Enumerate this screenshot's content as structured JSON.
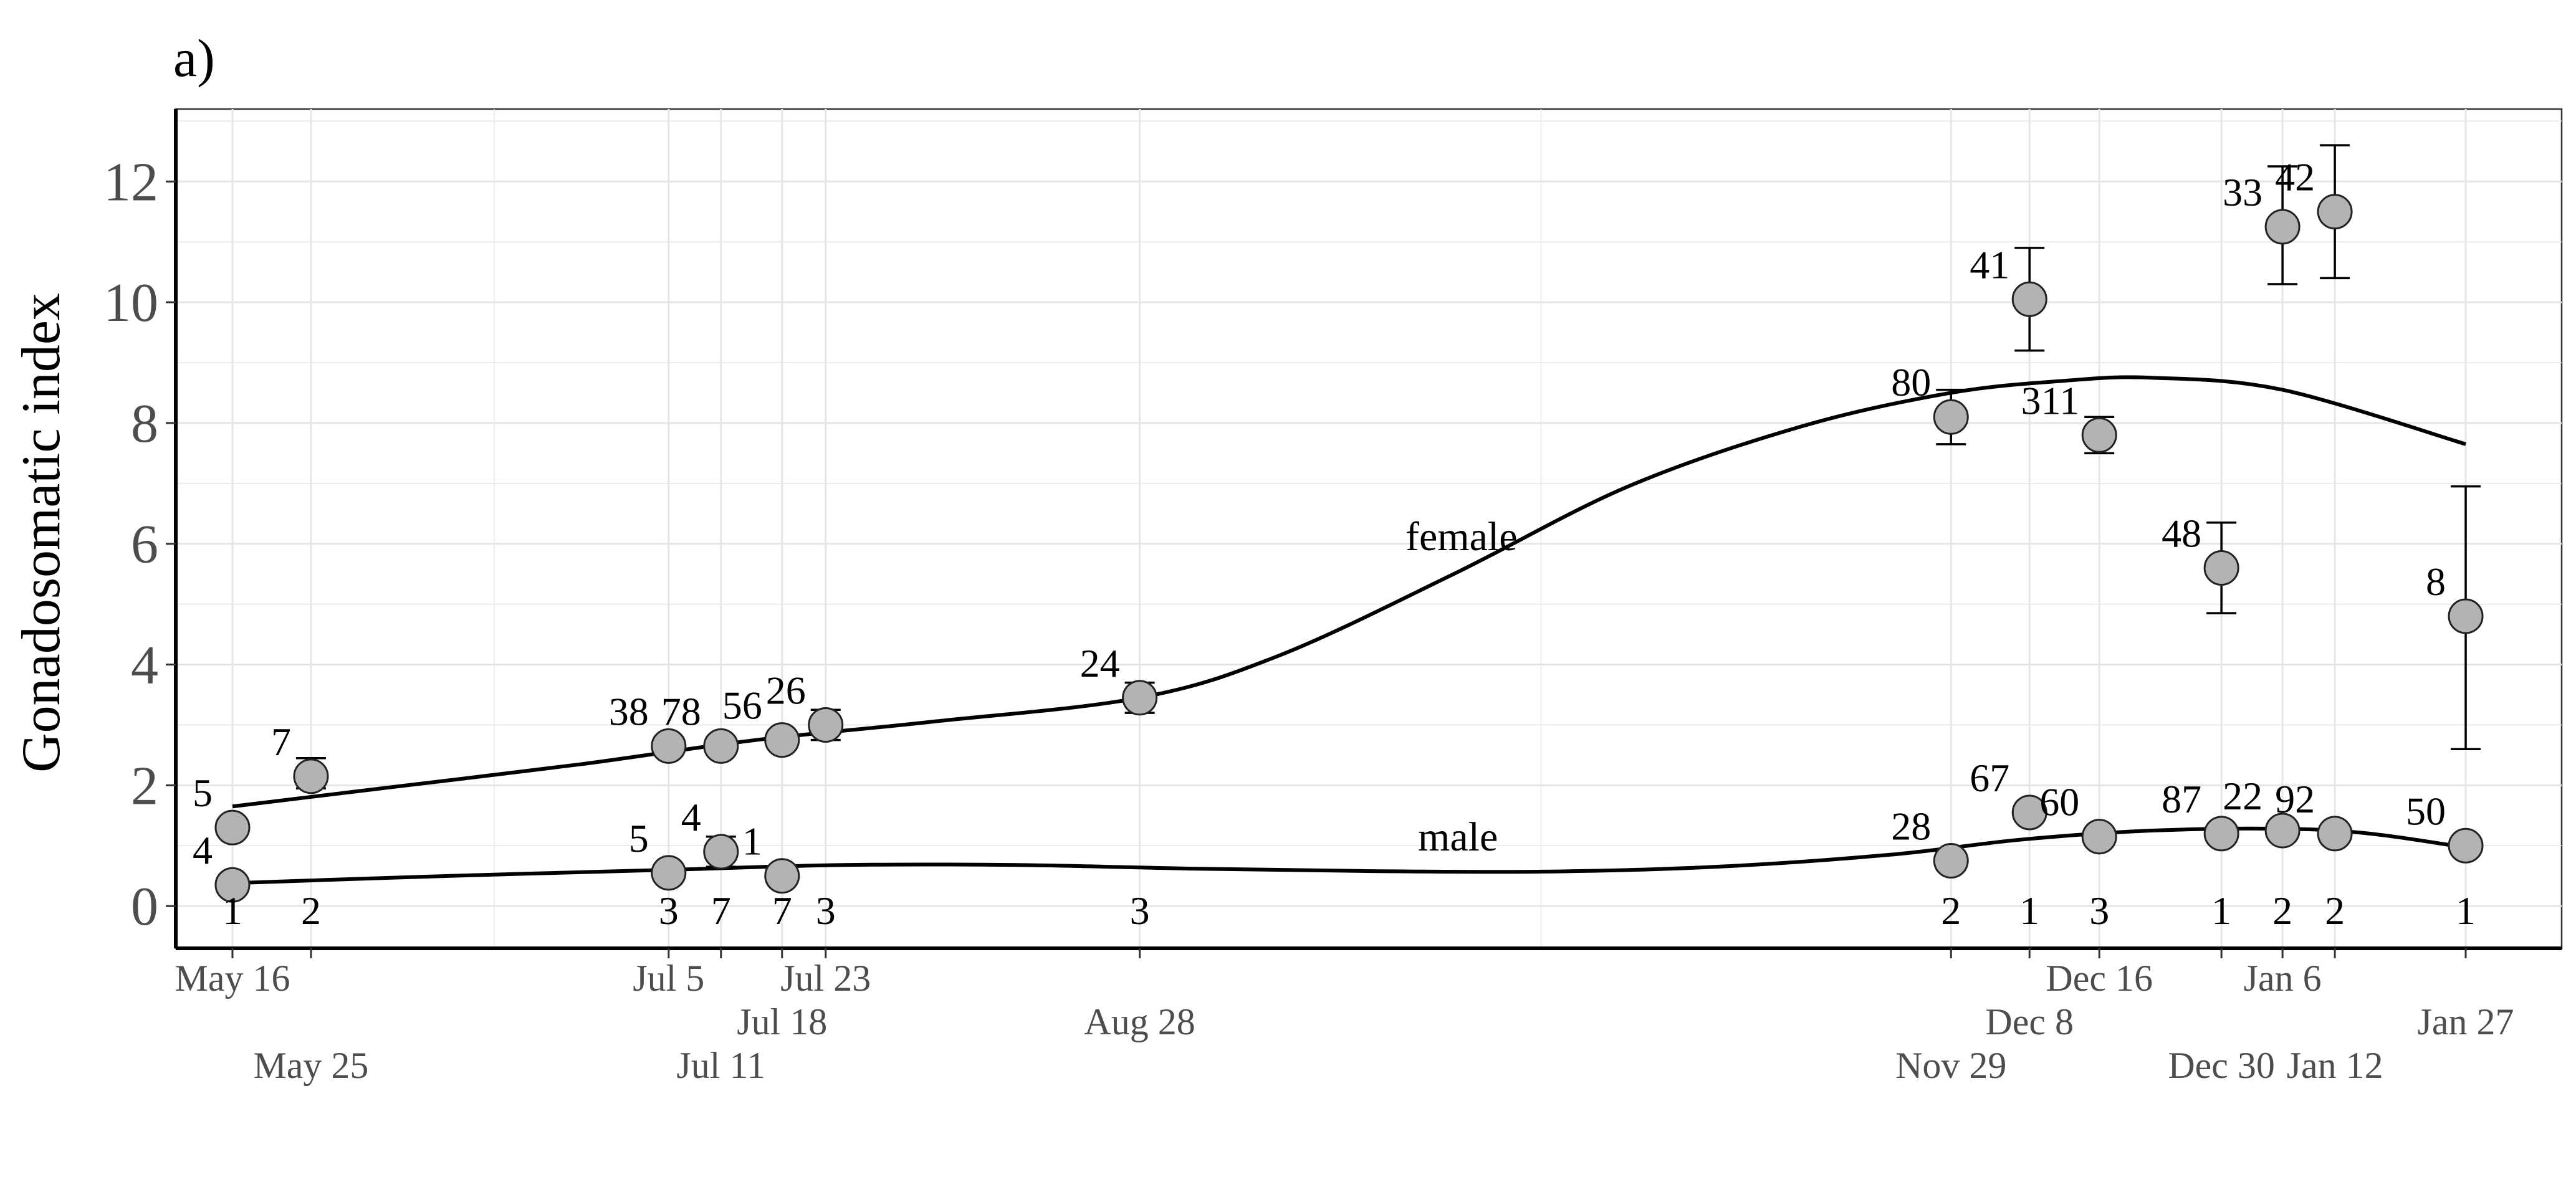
{
  "panel_label": "a)",
  "chart_data": {
    "type": "scatter",
    "ylabel": "Gonadosomatic index",
    "xlabel": "",
    "ylim": [
      -0.7,
      13.2
    ],
    "yticks": [
      0,
      2,
      4,
      6,
      8,
      10,
      12
    ],
    "grid": true,
    "x_start": "May 16",
    "xlim_days": [
      -6.5,
      267
    ],
    "x_ticks": [
      {
        "label": "May 16",
        "day": 0,
        "row": 0
      },
      {
        "label": "May 25",
        "day": 9,
        "row": 2
      },
      {
        "label": "Jul 5",
        "day": 50,
        "row": 0
      },
      {
        "label": "Jul 11",
        "day": 56,
        "row": 2
      },
      {
        "label": "Jul 18",
        "day": 63,
        "row": 1
      },
      {
        "label": "Jul 23",
        "day": 68,
        "row": 0
      },
      {
        "label": "Aug 28",
        "day": 104,
        "row": 1
      },
      {
        "label": "Nov 29",
        "day": 197,
        "row": 2
      },
      {
        "label": "Dec 8",
        "day": 206,
        "row": 1
      },
      {
        "label": "Dec 16",
        "day": 214,
        "row": 0
      },
      {
        "label": "Dec 30",
        "day": 228,
        "row": 2
      },
      {
        "label": "Jan 6",
        "day": 235,
        "row": 0
      },
      {
        "label": "Jan 12",
        "day": 241,
        "row": 2
      },
      {
        "label": "Jan 27",
        "day": 256,
        "row": 1
      }
    ],
    "series": [
      {
        "name": "female",
        "points": [
          {
            "date": "May 16",
            "y": 1.3,
            "lo": 1.3,
            "hi": 1.3,
            "n": "5"
          },
          {
            "date": "May 25",
            "y": 2.15,
            "lo": 1.95,
            "hi": 2.45,
            "n": "7"
          },
          {
            "date": "Jul 5",
            "y": 2.65,
            "lo": 2.55,
            "hi": 2.8,
            "n": "38"
          },
          {
            "date": "Jul 11",
            "y": 2.65,
            "lo": 2.55,
            "hi": 2.8,
            "n": "78"
          },
          {
            "date": "Jul 18",
            "y": 2.75,
            "lo": 2.6,
            "hi": 2.9,
            "n": "56"
          },
          {
            "date": "Jul 23",
            "y": 3.0,
            "lo": 2.75,
            "hi": 3.25,
            "n": "26"
          },
          {
            "date": "Aug 28",
            "y": 3.45,
            "lo": 3.2,
            "hi": 3.7,
            "n": "24"
          },
          {
            "date": "Nov 29",
            "y": 8.1,
            "lo": 7.65,
            "hi": 8.55,
            "n": "80"
          },
          {
            "date": "Dec 8",
            "y": 10.05,
            "lo": 9.2,
            "hi": 10.9,
            "n": "41"
          },
          {
            "date": "Dec 16",
            "y": 7.8,
            "lo": 7.5,
            "hi": 8.1,
            "n": "311"
          },
          {
            "date": "Dec 30",
            "y": 5.6,
            "lo": 4.85,
            "hi": 6.35,
            "n": "48"
          },
          {
            "date": "Jan 6",
            "y": 11.25,
            "lo": 10.3,
            "hi": 12.25,
            "n": "33"
          },
          {
            "date": "Jan 12",
            "y": 11.5,
            "lo": 10.4,
            "hi": 12.6,
            "n": "42"
          },
          {
            "date": "Jan 27",
            "y": 4.8,
            "lo": 2.6,
            "hi": 6.95,
            "n": "8"
          }
        ],
        "smooth": [
          [
            0,
            1.65
          ],
          [
            20,
            2.0
          ],
          [
            40,
            2.35
          ],
          [
            60,
            2.75
          ],
          [
            80,
            3.05
          ],
          [
            104,
            3.45
          ],
          [
            120,
            4.15
          ],
          [
            140,
            5.5
          ],
          [
            160,
            6.95
          ],
          [
            180,
            7.95
          ],
          [
            197,
            8.5
          ],
          [
            210,
            8.7
          ],
          [
            220,
            8.75
          ],
          [
            235,
            8.55
          ],
          [
            256,
            7.65
          ]
        ]
      },
      {
        "name": "male",
        "points": [
          {
            "date": "May 16",
            "y": 0.35,
            "lo": 0.35,
            "hi": 0.35,
            "n": "4",
            "n_bottom": "1"
          },
          {
            "date": "May 25",
            "y": null,
            "n_bottom": "2"
          },
          {
            "date": "Jul 5",
            "y": 0.55,
            "lo": 0.45,
            "hi": 0.65,
            "n": "5",
            "n_bottom": "3"
          },
          {
            "date": "Jul 11",
            "y": 0.9,
            "lo": 0.65,
            "hi": 1.15,
            "n": "4",
            "n_bottom": "7"
          },
          {
            "date": "Jul 18",
            "y": 0.5,
            "lo": 0.5,
            "hi": 0.5,
            "n": "1",
            "n_bottom": "7"
          },
          {
            "date": "Jul 23",
            "y": null,
            "n_bottom": "3"
          },
          {
            "date": "Aug 28",
            "y": null,
            "n_bottom": "3"
          },
          {
            "date": "Nov 29",
            "y": 0.75,
            "lo": 0.6,
            "hi": 0.9,
            "n": "28",
            "n_bottom": "2"
          },
          {
            "date": "Dec 8",
            "y": 1.55,
            "lo": 1.45,
            "hi": 1.65,
            "n": "67",
            "n_bottom": "1"
          },
          {
            "date": "Dec 16",
            "y": 1.15,
            "lo": 1.05,
            "hi": 1.25,
            "n": "60",
            "n_bottom": "3"
          },
          {
            "date": "Dec 30",
            "y": 1.2,
            "lo": 1.1,
            "hi": 1.3,
            "n": "87",
            "n_bottom": "1"
          },
          {
            "date": "Jan 6",
            "y": 1.25,
            "lo": 1.15,
            "hi": 1.35,
            "n": "22",
            "n_bottom": "2"
          },
          {
            "date": "Jan 12",
            "y": 1.2,
            "lo": 1.15,
            "hi": 1.25,
            "n": "92",
            "n_bottom": "2"
          },
          {
            "date": "Jan 27",
            "y": 1.0,
            "lo": 0.9,
            "hi": 1.1,
            "n": "50",
            "n_bottom": "1"
          }
        ],
        "smooth": [
          [
            0,
            0.38
          ],
          [
            25,
            0.5
          ],
          [
            50,
            0.6
          ],
          [
            70,
            0.68
          ],
          [
            90,
            0.68
          ],
          [
            110,
            0.62
          ],
          [
            130,
            0.58
          ],
          [
            150,
            0.57
          ],
          [
            170,
            0.65
          ],
          [
            190,
            0.85
          ],
          [
            205,
            1.1
          ],
          [
            220,
            1.25
          ],
          [
            235,
            1.28
          ],
          [
            245,
            1.2
          ],
          [
            256,
            0.97
          ]
        ]
      }
    ],
    "annotations": [
      "female",
      "male"
    ],
    "colors": {
      "point_fill": "#b3b3b3",
      "line": "#000000",
      "grid": "#e6e6e6",
      "text": "#4d4d4d"
    }
  }
}
